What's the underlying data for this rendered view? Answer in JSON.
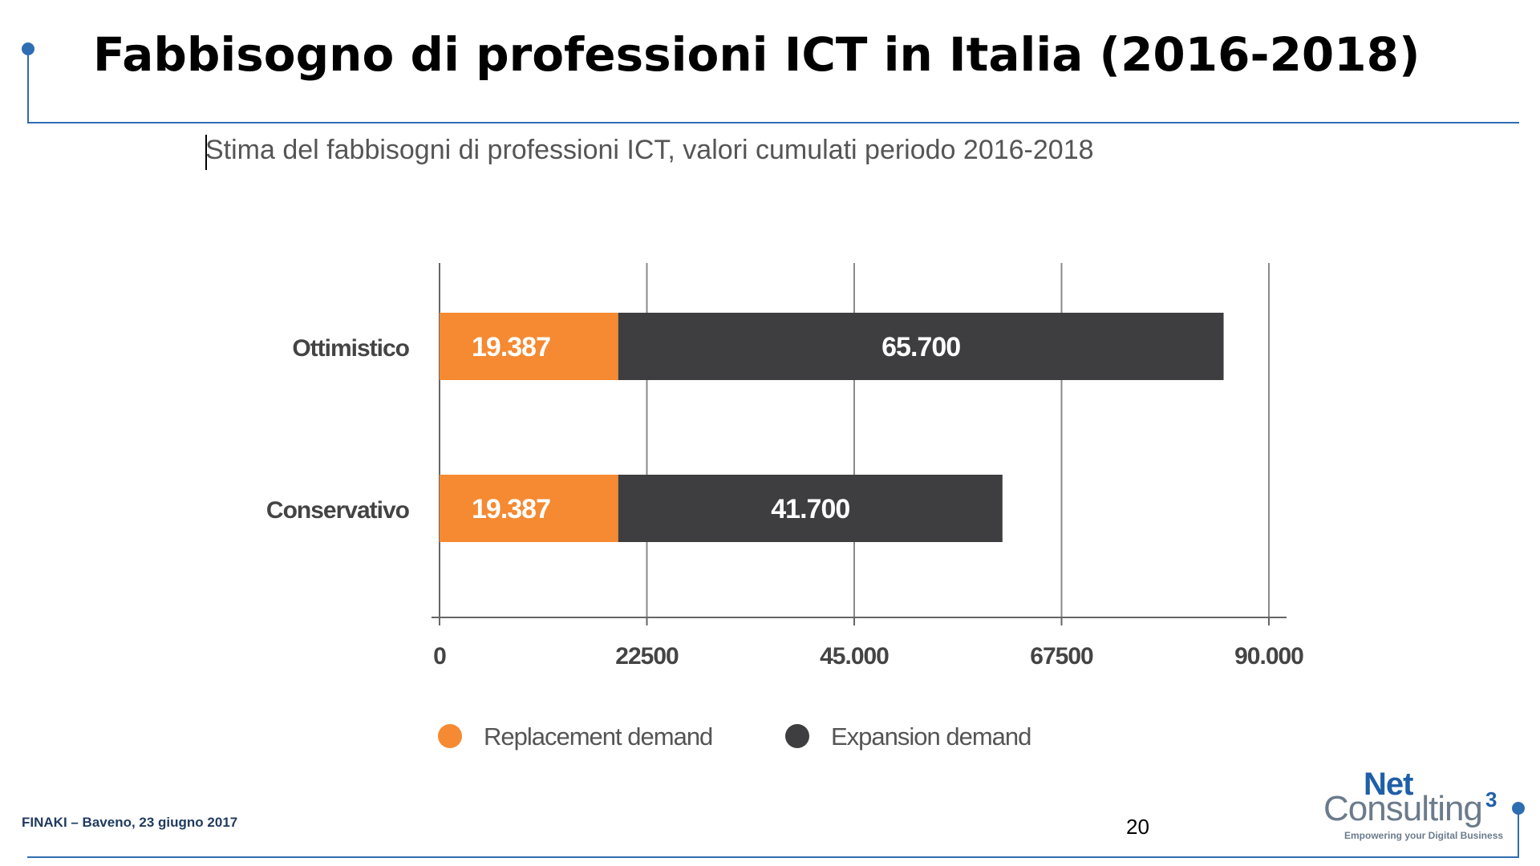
{
  "slide": {
    "title": "Fabbisogno di professioni ICT in Italia (2016-2018)",
    "footer": "FINAKI – Baveno, 23 giugno 2017",
    "page_number": "20",
    "accent_color": "#2f6db3"
  },
  "logo": {
    "net": "Net",
    "consulting": "Consulting",
    "superscript": "3",
    "tagline": "Empowering your Digital Business"
  },
  "chart_data": {
    "type": "bar",
    "orientation": "horizontal",
    "stacked": true,
    "title": "Stima del fabbisogni di professioni ICT, valori cumulati periodo 2016-2018",
    "categories": [
      "Ottimistico",
      "Conservativo"
    ],
    "series": [
      {
        "name": "Replacement demand",
        "color": "#f58a32",
        "values": [
          19387,
          19387
        ],
        "labels": [
          "19.387",
          "19.387"
        ]
      },
      {
        "name": "Expansion demand",
        "color": "#3e3e40",
        "values": [
          65700,
          41700
        ],
        "labels": [
          "65.700",
          "41.700"
        ]
      }
    ],
    "xlim": [
      0,
      90000
    ],
    "xticks": [
      0,
      22500,
      45000,
      67500,
      90000
    ],
    "xtick_labels": [
      "0",
      "22500",
      "45.000",
      "67500",
      "90.000"
    ],
    "grid": "vertical",
    "legend_position": "bottom"
  }
}
